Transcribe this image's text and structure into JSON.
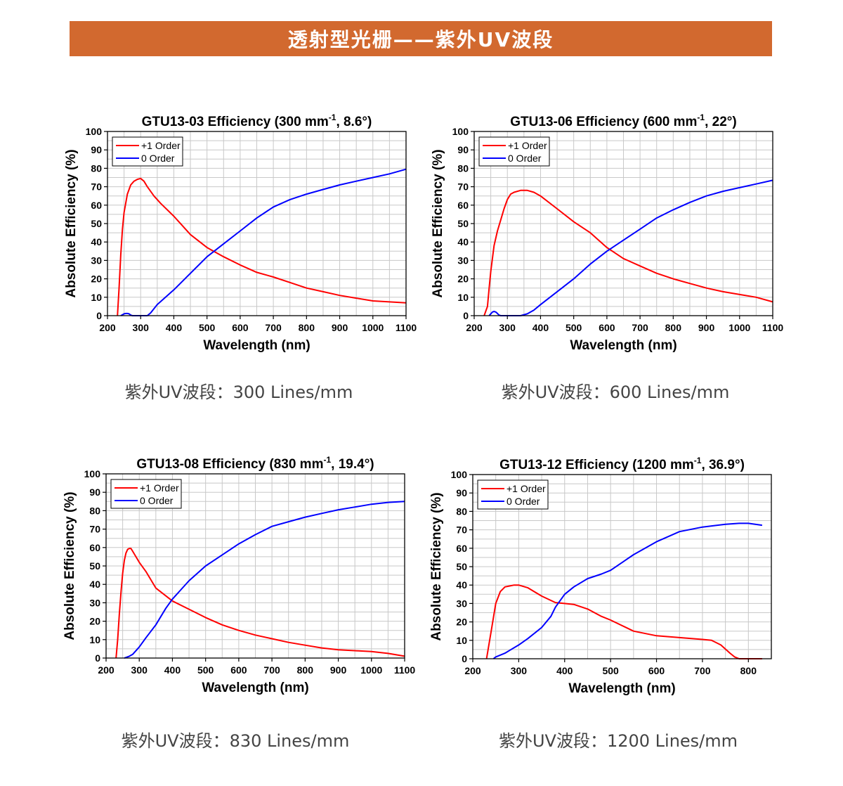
{
  "banner": {
    "title": "透射型光栅——紫外UV波段",
    "color": "#D2692F"
  },
  "captions": [
    "紫外UV波段：300 Lines/mm",
    "紫外UV波段：600 Lines/mm",
    "紫外UV波段：830 Lines/mm",
    "紫外UV波段：1200 Lines/mm"
  ],
  "series_colors": {
    "+1 Order": "#FF0000",
    "0 Order": "#0000FF"
  },
  "chart_data": [
    {
      "type": "line",
      "title_prefix": "GTU13-03 Efficiency (300 mm",
      "title_sup": "-1",
      "title_suffix": ", 8.6°)",
      "xlabel": "Wavelength (nm)",
      "ylabel": "Absolute Efficiency (%)",
      "xlim": [
        200,
        1100
      ],
      "ylim": [
        0,
        100
      ],
      "xticks": [
        200,
        300,
        400,
        500,
        600,
        700,
        800,
        900,
        1000,
        1100
      ],
      "xtick_labels": [
        "200",
        "300",
        "400",
        "500",
        "600",
        "700",
        "800",
        "900",
        "1000",
        "1100"
      ],
      "yticks": [
        0,
        10,
        20,
        30,
        40,
        50,
        60,
        70,
        80,
        90,
        100
      ],
      "grid": true,
      "legend_position": "top-left",
      "series": [
        {
          "name": "+1 Order",
          "color": "#FF0000",
          "x": [
            230,
            235,
            240,
            245,
            250,
            260,
            270,
            280,
            290,
            300,
            310,
            320,
            340,
            360,
            400,
            450,
            500,
            550,
            600,
            650,
            700,
            750,
            800,
            850,
            900,
            950,
            1000,
            1050,
            1100
          ],
          "y": [
            0,
            15,
            33,
            47,
            56,
            66,
            71,
            73,
            74,
            74.5,
            73,
            70,
            65,
            61,
            54,
            44,
            37,
            32,
            27.5,
            23.5,
            21,
            18,
            15,
            13,
            11,
            9.5,
            8,
            7.5,
            7
          ]
        },
        {
          "name": "0 Order",
          "color": "#0000FF",
          "x": [
            240,
            245,
            250,
            255,
            260,
            265,
            270,
            275,
            280,
            300,
            320,
            330,
            350,
            400,
            450,
            500,
            550,
            600,
            650,
            700,
            750,
            800,
            850,
            900,
            950,
            1000,
            1050,
            1100
          ],
          "y": [
            0,
            0.5,
            1,
            1.2,
            1.2,
            1,
            0.3,
            0,
            0,
            0,
            0,
            1.5,
            6,
            14,
            23,
            32,
            39,
            46,
            53,
            59,
            63,
            66,
            68.5,
            71,
            73,
            75,
            77,
            79.5
          ]
        }
      ]
    },
    {
      "type": "line",
      "title_prefix": "GTU13-06 Efficiency (600 mm",
      "title_sup": "-1",
      "title_suffix": ", 22°)",
      "xlabel": "Wavelength (nm)",
      "ylabel": "Absolute Efficiency (%)",
      "xlim": [
        200,
        1100
      ],
      "ylim": [
        0,
        100
      ],
      "xticks": [
        200,
        300,
        400,
        500,
        600,
        700,
        800,
        900,
        1000,
        1100
      ],
      "xtick_labels": [
        "200",
        "300",
        "400",
        "500",
        "600",
        "700",
        "800",
        "900",
        "1000",
        "1100"
      ],
      "yticks": [
        0,
        10,
        20,
        30,
        40,
        50,
        60,
        70,
        80,
        90,
        100
      ],
      "grid": true,
      "legend_position": "top-left",
      "series": [
        {
          "name": "+1 Order",
          "color": "#FF0000",
          "x": [
            230,
            240,
            245,
            250,
            260,
            270,
            280,
            290,
            300,
            310,
            320,
            340,
            360,
            380,
            400,
            450,
            500,
            550,
            600,
            650,
            700,
            750,
            800,
            850,
            900,
            950,
            1000,
            1050,
            1100
          ],
          "y": [
            0,
            5,
            15,
            24,
            38,
            46,
            52,
            58,
            63,
            66,
            67,
            68,
            68,
            67,
            65,
            58,
            51,
            45,
            37,
            31,
            27,
            23,
            20,
            17.5,
            15,
            13,
            11.5,
            10,
            7.5
          ]
        },
        {
          "name": "0 Order",
          "color": "#0000FF",
          "x": [
            245,
            250,
            255,
            260,
            265,
            270,
            275,
            280,
            300,
            340,
            360,
            380,
            400,
            450,
            500,
            550,
            600,
            650,
            700,
            750,
            800,
            850,
            900,
            950,
            1000,
            1050,
            1100
          ],
          "y": [
            0,
            1,
            2,
            2.3,
            2,
            1.2,
            0.3,
            0,
            0,
            0,
            1,
            3,
            6,
            13,
            20,
            28,
            35,
            41,
            47,
            53,
            57.5,
            61.5,
            65,
            67.5,
            69.5,
            71.5,
            73.5
          ]
        }
      ]
    },
    {
      "type": "line",
      "title_prefix": "GTU13-08 Efficiency (830 mm",
      "title_sup": "-1",
      "title_suffix": ", 19.4°)",
      "xlabel": "Wavelength (nm)",
      "ylabel": "Absolute Efficiency (%)",
      "xlim": [
        200,
        1100
      ],
      "ylim": [
        0,
        100
      ],
      "xticks": [
        200,
        300,
        400,
        500,
        600,
        700,
        800,
        900,
        1000,
        1100
      ],
      "xtick_labels": [
        "200",
        "300",
        "400",
        "500",
        "600",
        "700",
        "800",
        "900",
        "1000",
        "1100"
      ],
      "yticks": [
        0,
        10,
        20,
        30,
        40,
        50,
        60,
        70,
        80,
        90,
        100
      ],
      "grid": true,
      "legend_position": "top-left",
      "series": [
        {
          "name": "+1 Order",
          "color": "#FF0000",
          "x": [
            230,
            235,
            240,
            245,
            250,
            255,
            260,
            265,
            270,
            275,
            280,
            290,
            300,
            320,
            350,
            400,
            450,
            500,
            550,
            600,
            650,
            700,
            750,
            800,
            850,
            900,
            950,
            1000,
            1050,
            1100
          ],
          "y": [
            0,
            10,
            24,
            36,
            46,
            53,
            57,
            59,
            59.5,
            59.5,
            58,
            55,
            52,
            47,
            38,
            31,
            26.5,
            22,
            18,
            15,
            12.5,
            10.5,
            8.5,
            7,
            5.5,
            4.5,
            4,
            3.5,
            2.5,
            1
          ]
        },
        {
          "name": "0 Order",
          "color": "#0000FF",
          "x": [
            255,
            260,
            270,
            280,
            300,
            320,
            350,
            380,
            400,
            450,
            500,
            550,
            600,
            650,
            700,
            750,
            800,
            850,
            900,
            950,
            1000,
            1050,
            1100
          ],
          "y": [
            0,
            0.3,
            1,
            2,
            6,
            11,
            18,
            27,
            32,
            42,
            50,
            56,
            62,
            67,
            71.5,
            74,
            76.5,
            78.5,
            80.5,
            82,
            83.5,
            84.5,
            85
          ]
        }
      ]
    },
    {
      "type": "line",
      "title_prefix": "GTU13-12 Efficiency (1200 mm",
      "title_sup": "-1",
      "title_suffix": ", 36.9°)",
      "xlabel": "Wavelength (nm)",
      "ylabel": "Absolute Efficiency (%)",
      "xlim": [
        200,
        850
      ],
      "ylim": [
        0,
        100
      ],
      "xticks": [
        200,
        300,
        400,
        500,
        600,
        700,
        800
      ],
      "xtick_labels": [
        "200",
        "300",
        "400",
        "500",
        "600",
        "700",
        "800"
      ],
      "yticks": [
        0,
        10,
        20,
        30,
        40,
        50,
        60,
        70,
        80,
        90,
        100
      ],
      "grid": true,
      "legend_position": "top-left",
      "series": [
        {
          "name": "+1 Order",
          "color": "#FF0000",
          "x": [
            230,
            240,
            250,
            260,
            270,
            280,
            290,
            300,
            320,
            350,
            380,
            400,
            420,
            450,
            480,
            500,
            550,
            600,
            650,
            700,
            720,
            740,
            760,
            770,
            780,
            800,
            830
          ],
          "y": [
            0,
            15,
            30,
            36.5,
            39,
            39.5,
            40,
            40,
            38.5,
            34,
            30.5,
            30,
            29.5,
            27,
            23,
            21,
            15,
            12.5,
            11.5,
            10.5,
            10,
            7.5,
            3,
            1,
            0,
            0,
            0
          ]
        },
        {
          "name": "0 Order",
          "color": "#0000FF",
          "x": [
            245,
            250,
            260,
            270,
            280,
            300,
            320,
            350,
            370,
            380,
            400,
            420,
            450,
            480,
            500,
            550,
            600,
            650,
            700,
            750,
            780,
            800,
            830
          ],
          "y": [
            0,
            1,
            2,
            3,
            4.5,
            7.5,
            11,
            17,
            23,
            28,
            35,
            39,
            43.5,
            46,
            48,
            56.5,
            63.5,
            69,
            71.5,
            73,
            73.5,
            73.5,
            72.5
          ]
        }
      ]
    }
  ]
}
